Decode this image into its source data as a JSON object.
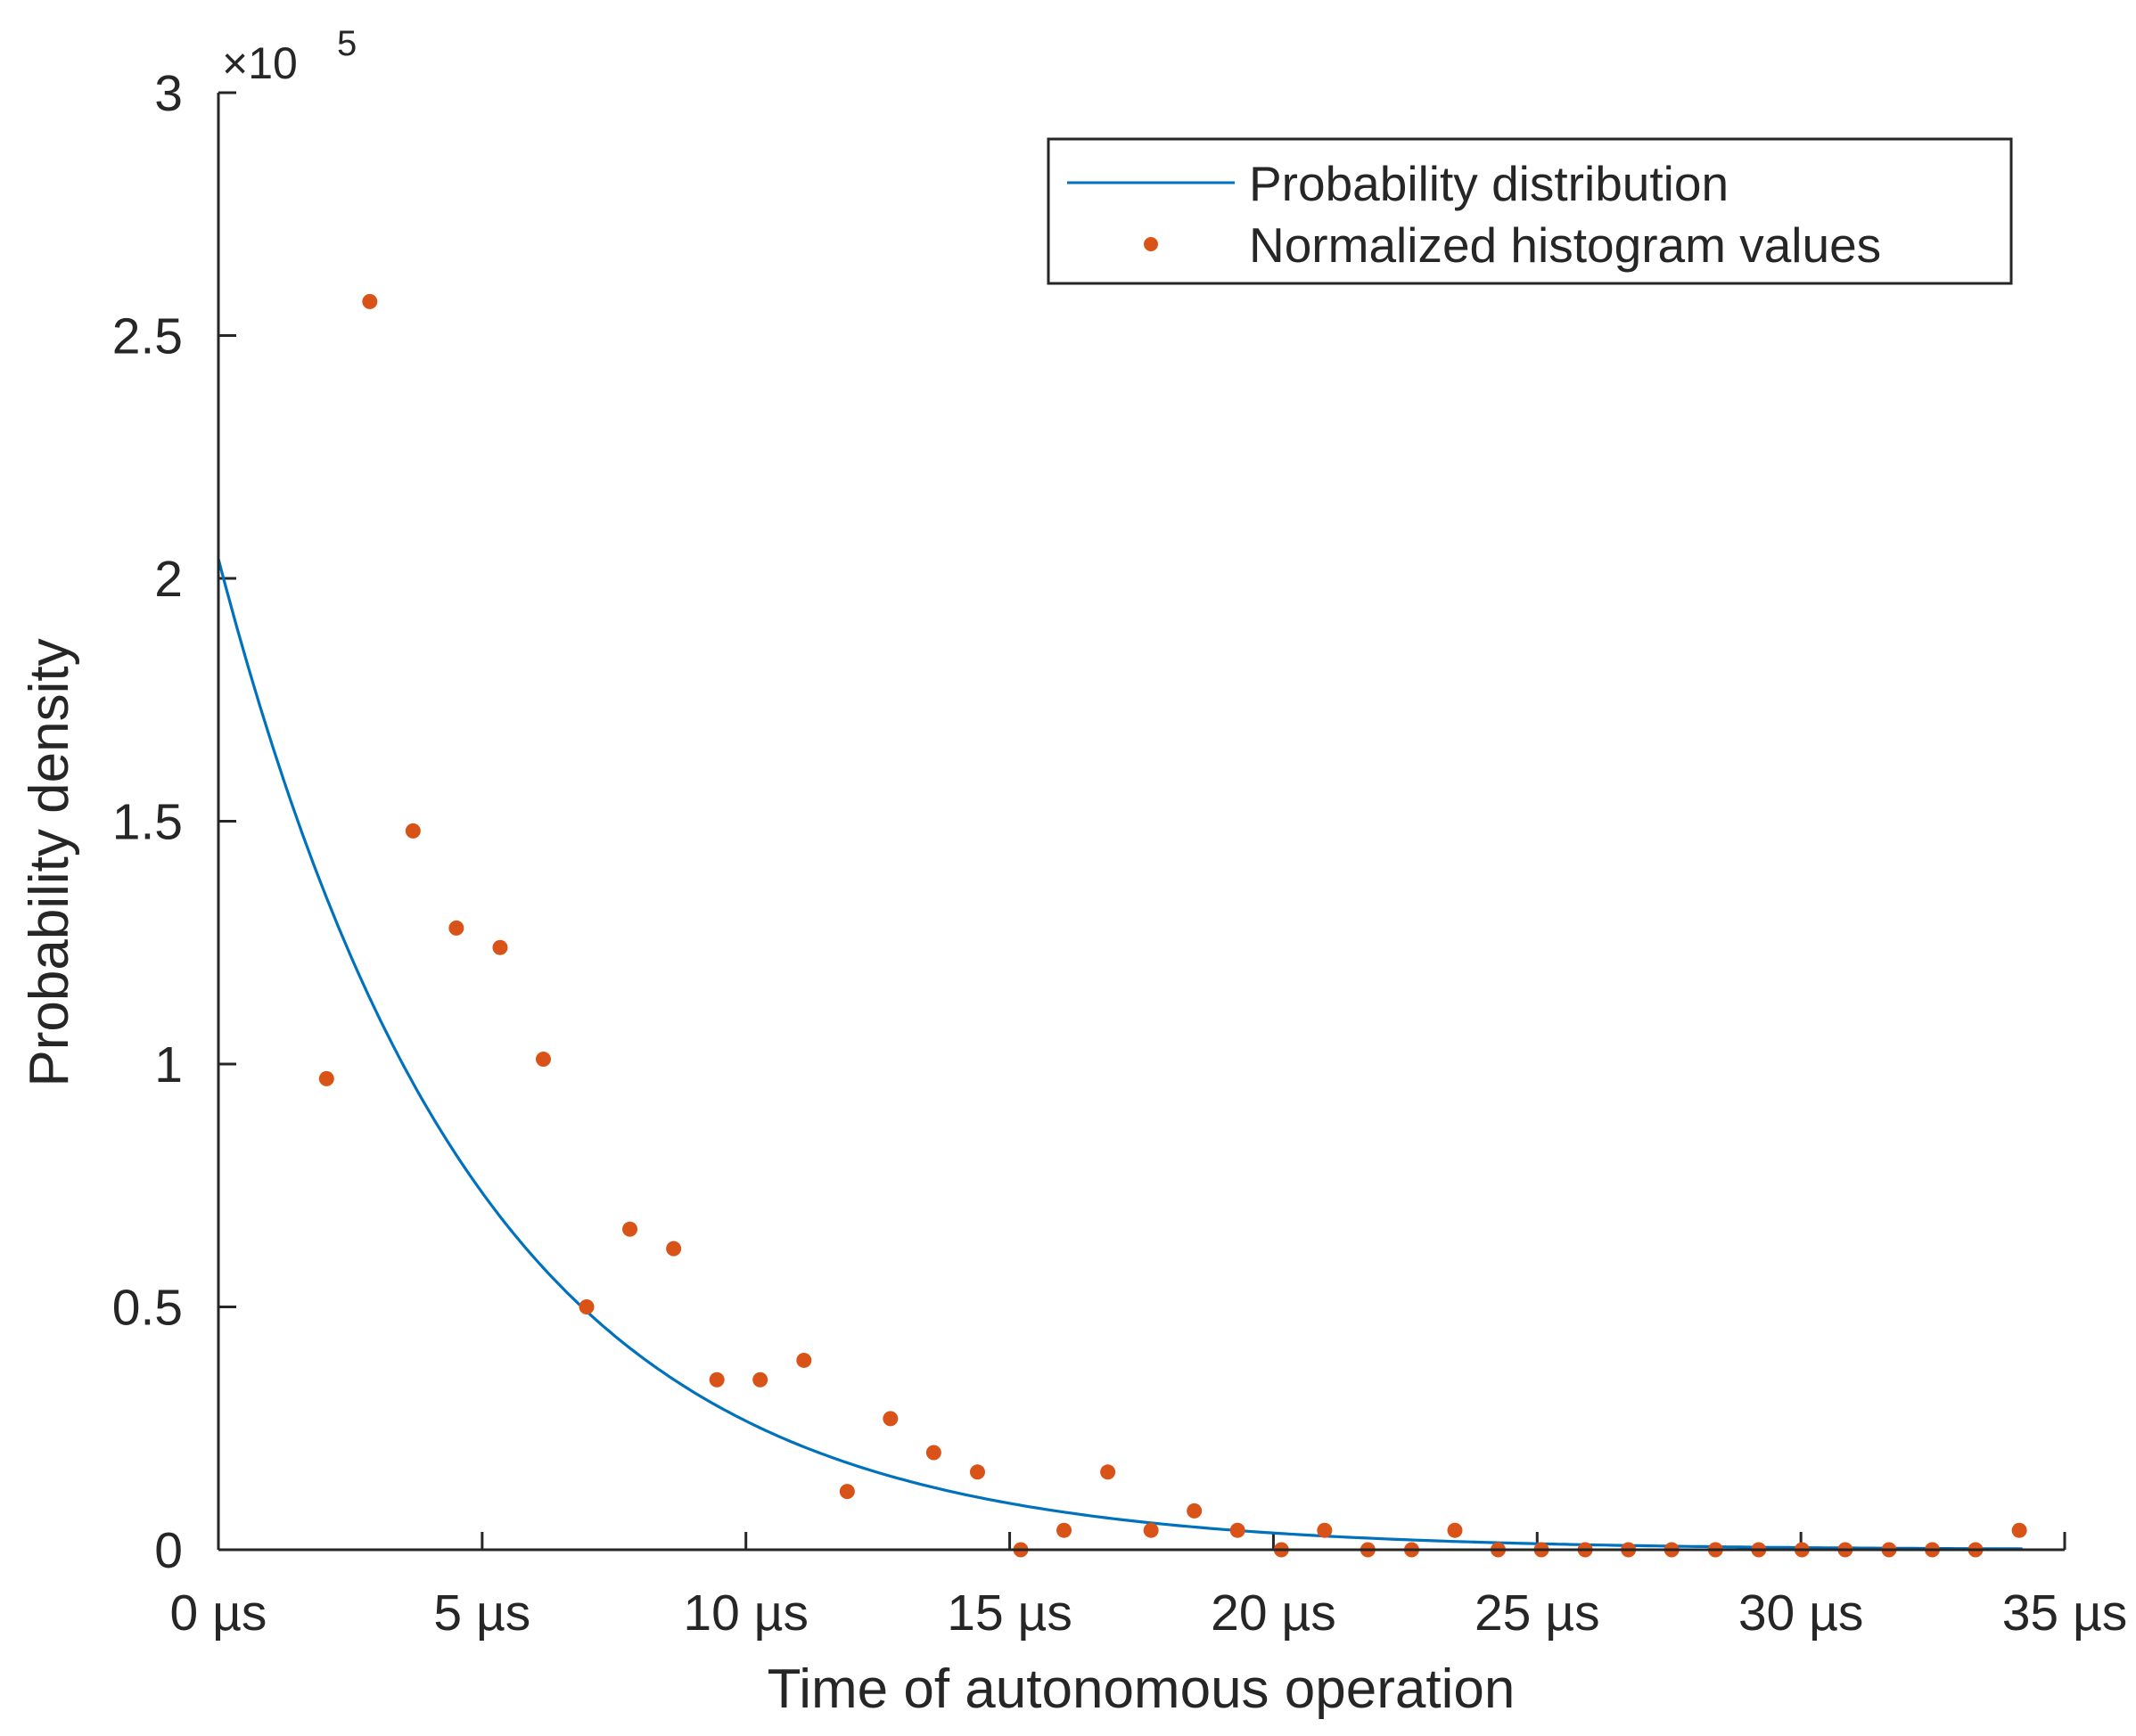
{
  "chart_data": {
    "type": "line+scatter",
    "title": "",
    "xlabel": "Time of autonomous operation",
    "ylabel": "Probability density",
    "xlim": [
      0,
      35
    ],
    "ylim": [
      0,
      300000
    ],
    "y_scale_label": "×10",
    "y_scale_exponent": "5",
    "x_ticks": [
      {
        "value": 0,
        "label": "0 µs"
      },
      {
        "value": 5,
        "label": "5 µs"
      },
      {
        "value": 10,
        "label": "10 µs"
      },
      {
        "value": 15,
        "label": "15 µs"
      },
      {
        "value": 20,
        "label": "20 µs"
      },
      {
        "value": 25,
        "label": "25 µs"
      },
      {
        "value": 30,
        "label": "30 µs"
      },
      {
        "value": 35,
        "label": "35 µs"
      }
    ],
    "y_ticks": [
      {
        "value": 0,
        "label": "0"
      },
      {
        "value": 50000,
        "label": "0.5"
      },
      {
        "value": 100000,
        "label": "1"
      },
      {
        "value": 150000,
        "label": "1.5"
      },
      {
        "value": 200000,
        "label": "2"
      },
      {
        "value": 250000,
        "label": "2.5"
      },
      {
        "value": 300000,
        "label": "3"
      }
    ],
    "legend": {
      "position": "top-right",
      "entries": [
        "Probability distribution",
        "Normalized histogram values"
      ]
    },
    "series": [
      {
        "name": "Probability distribution",
        "kind": "line",
        "color": "#0072BD",
        "function": "exponential",
        "y0": 204000,
        "tau_us": 4.9,
        "x_start": 0,
        "x_end": 34.2
      },
      {
        "name": "Normalized histogram values",
        "kind": "scatter",
        "color": "#D95319",
        "x": [
          2.05,
          2.87,
          3.69,
          4.51,
          5.34,
          6.16,
          6.98,
          7.8,
          8.63,
          9.45,
          10.27,
          11.1,
          11.92,
          12.74,
          13.56,
          14.39,
          15.21,
          16.03,
          16.86,
          17.68,
          18.5,
          19.32,
          20.15,
          20.97,
          21.79,
          22.62,
          23.44,
          24.26,
          25.08,
          25.91,
          26.73,
          27.55,
          28.38,
          29.2,
          30.02,
          30.84,
          31.67,
          32.49,
          33.31,
          34.14
        ],
        "y": [
          97000,
          257000,
          148000,
          128000,
          124000,
          101000,
          50000,
          66000,
          62000,
          35000,
          35000,
          39000,
          12000,
          27000,
          20000,
          16000,
          0,
          4000,
          16000,
          4000,
          8000,
          4000,
          0,
          4000,
          0,
          0,
          4000,
          0,
          0,
          0,
          0,
          0,
          0,
          0,
          0,
          0,
          0,
          0,
          0,
          4000
        ]
      }
    ]
  }
}
